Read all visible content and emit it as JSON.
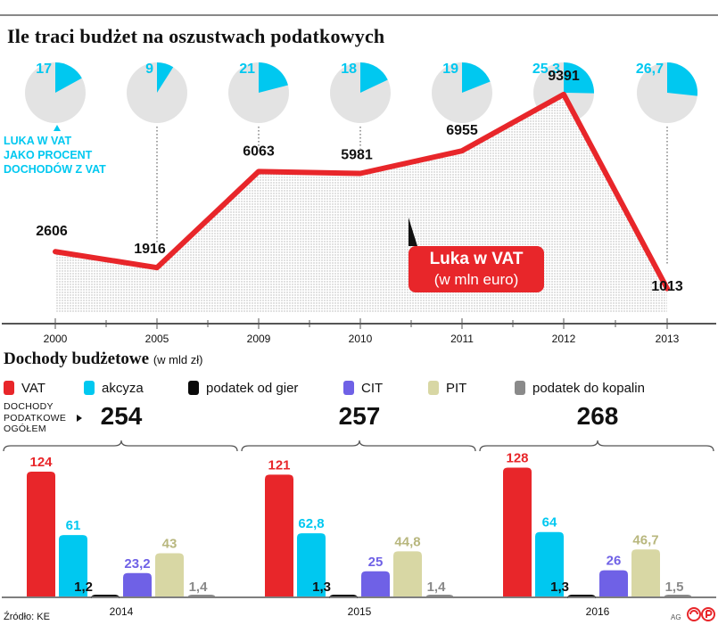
{
  "title": "Ile traci budżet na oszustwach podatkowych",
  "vat_gap_note": {
    "lines": [
      "LUKA W VAT",
      "JAKO PROCENT",
      "DOCHODÓW Z VAT"
    ]
  },
  "vat_gap_box": {
    "title": "Luka w VAT",
    "unit": "(w mln euro)"
  },
  "section2": {
    "title": "Dochody budżetowe",
    "unit": "(w mld zł)"
  },
  "total_label": {
    "lines": [
      "DOCHODY",
      "PODATKOWE",
      "OGÓŁEM"
    ]
  },
  "source": "Źródło: KE",
  "agency": "AG",
  "colors": {
    "red": "#e8262a",
    "cyan": "#00c8f0",
    "pie_grey": "#e3e3e3",
    "black": "#0a0a0a",
    "purple": "#6f61e6",
    "khaki": "#d8d7a4",
    "grey": "#8a8a8a"
  },
  "chart_data": [
    {
      "type": "pie",
      "description_key": "vat_gap_percent",
      "categories": [
        "2000",
        "2005",
        "2009",
        "2010",
        "2011",
        "2012",
        "2013"
      ],
      "values": [
        17,
        9,
        21,
        18,
        19,
        25.3,
        26.7
      ],
      "value_labels": [
        "17",
        "9",
        "21",
        "18",
        "19",
        "25,3",
        "26,7"
      ]
    },
    {
      "type": "line",
      "categories": [
        "2000",
        "2005",
        "2009",
        "2010",
        "2011",
        "2012",
        "2013"
      ],
      "values": [
        2606,
        1916,
        6063,
        5981,
        6955,
        9391,
        1013
      ],
      "value_labels": [
        "2606",
        "1916",
        "6063",
        "5981",
        "6955",
        "9391",
        "1013"
      ],
      "ylim": [
        0,
        10000
      ],
      "grid": false
    },
    {
      "type": "bar",
      "categories": [
        "2014",
        "2015",
        "2016"
      ],
      "totals": [
        "254",
        "257",
        "268"
      ],
      "series": [
        {
          "name": "VAT",
          "color": "#e8262a",
          "values": [
            124,
            121,
            128
          ],
          "labels": [
            "124",
            "121",
            "128"
          ]
        },
        {
          "name": "akcyza",
          "color": "#00c8f0",
          "values": [
            61,
            62.8,
            64
          ],
          "labels": [
            "61",
            "62,8",
            "64"
          ]
        },
        {
          "name": "podatek od gier",
          "color": "#0a0a0a",
          "values": [
            1.2,
            1.3,
            1.3
          ],
          "labels": [
            "1,2",
            "1,3",
            "1,3"
          ]
        },
        {
          "name": "CIT",
          "color": "#6f61e6",
          "values": [
            23.2,
            25,
            26
          ],
          "labels": [
            "23,2",
            "25",
            "26"
          ]
        },
        {
          "name": "PIT",
          "color": "#d8d7a4",
          "values": [
            43,
            44.8,
            46.7
          ],
          "labels": [
            "43",
            "44,8",
            "46,7"
          ]
        },
        {
          "name": "podatek do kopalin",
          "color": "#8a8a8a",
          "values": [
            1.4,
            1.4,
            1.5
          ],
          "labels": [
            "1,4",
            "1,4",
            "1,5"
          ]
        }
      ],
      "ylim": [
        0,
        130
      ],
      "legend": "top"
    }
  ]
}
